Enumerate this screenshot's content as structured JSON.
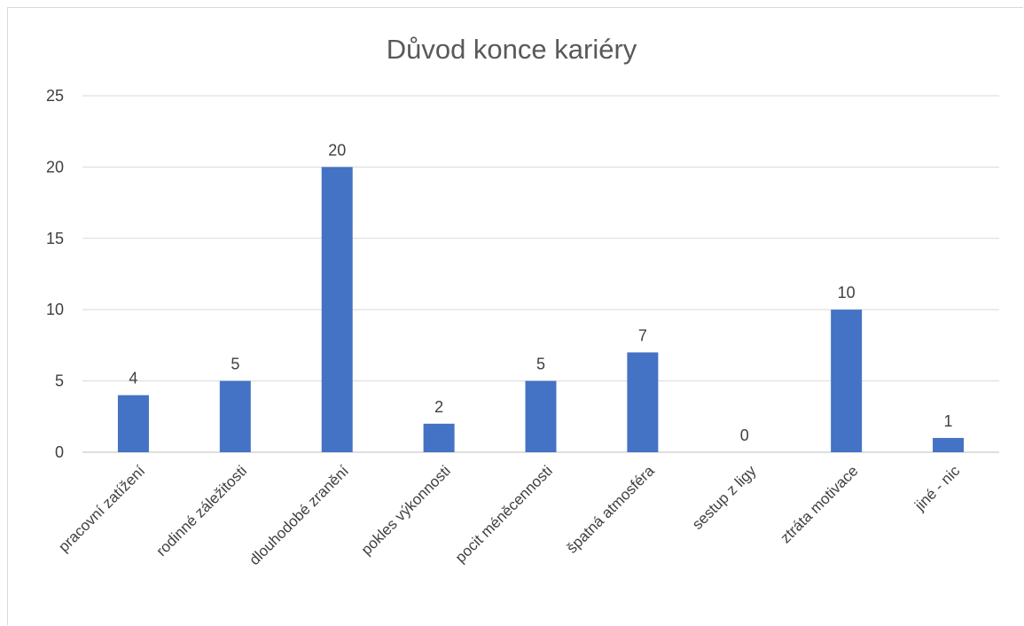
{
  "chart_data": {
    "type": "bar",
    "title": "Důvod konce kariéry",
    "xlabel": "",
    "ylabel": "",
    "ylim": [
      0,
      25
    ],
    "yticks": [
      0,
      5,
      10,
      15,
      20,
      25
    ],
    "grid": true,
    "legend": "none",
    "bar_color": "#4472C4",
    "categories": [
      "pracovní zatížení",
      "rodinné záležitosti",
      "dlouhodobé zranění",
      "pokles výkonnosti",
      "pocit méněcennosti",
      "špatná atmosféra",
      "sestup z ligy",
      "ztráta motivace",
      "jiné - nic"
    ],
    "values": [
      4,
      5,
      20,
      2,
      5,
      7,
      0,
      10,
      1
    ]
  }
}
